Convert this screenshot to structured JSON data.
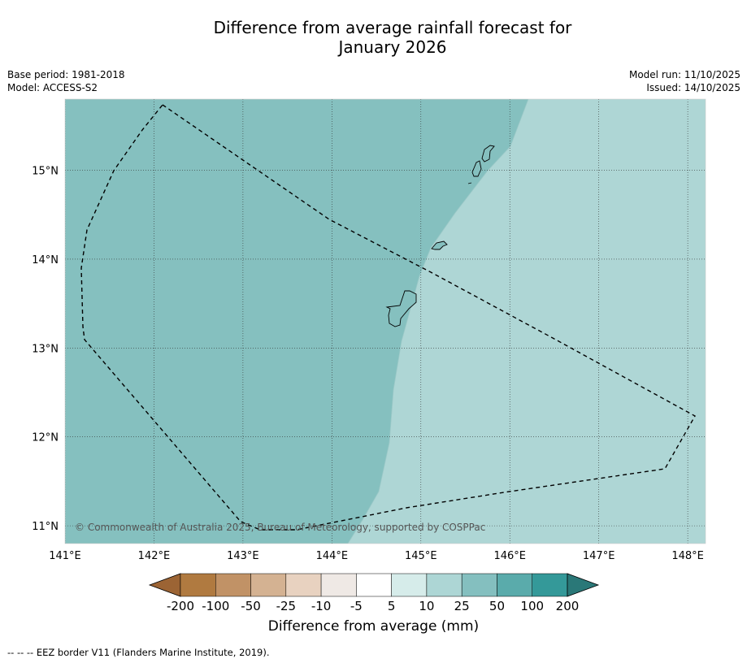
{
  "title": {
    "line1": "Difference from average rainfall forecast for",
    "line2": "January 2026"
  },
  "meta_left": {
    "base_period": "Base period: 1981-2018",
    "model": "Model: ACCESS-S2"
  },
  "meta_right": {
    "model_run": "Model run: 11/10/2025",
    "issued": "Issued: 14/10/2025"
  },
  "map": {
    "lon_range": [
      141.0,
      148.2
    ],
    "lat_range": [
      10.8,
      15.8
    ],
    "lon_ticks": [
      {
        "value": 141,
        "label": "141°E"
      },
      {
        "value": 142,
        "label": "142°E"
      },
      {
        "value": 143,
        "label": "143°E"
      },
      {
        "value": 144,
        "label": "144°E"
      },
      {
        "value": 145,
        "label": "145°E"
      },
      {
        "value": 146,
        "label": "146°E"
      },
      {
        "value": 147,
        "label": "147°E"
      },
      {
        "value": 148,
        "label": "148°E"
      }
    ],
    "lat_ticks": [
      {
        "value": 15,
        "label": "15°N"
      },
      {
        "value": 14,
        "label": "14°N"
      },
      {
        "value": 13,
        "label": "13°N"
      },
      {
        "value": 12,
        "label": "12°N"
      },
      {
        "value": 11,
        "label": "11°N"
      }
    ],
    "regions": [
      {
        "name": "50 to 100 mm above average",
        "color": "#85c0bf"
      },
      {
        "name": "25 to 50 mm above average",
        "color": "#aed6d5"
      }
    ],
    "copyright": "© Commonwealth of Australia 2025, Bureau of Meteorology, supported by COSPPac"
  },
  "colorbar": {
    "title": "Difference from average (mm)",
    "labels": [
      "-200",
      "-100",
      "-50",
      "-25",
      "-10",
      "-5",
      "5",
      "10",
      "25",
      "50",
      "100",
      "200"
    ],
    "colors": [
      "#9c6434",
      "#b07a40",
      "#c19266",
      "#d4b292",
      "#e8d2c0",
      "#efe9e5",
      "#ffffff",
      "#d6ecea",
      "#add6d5",
      "#84bfbf",
      "#5aabab",
      "#349999",
      "#2a7878"
    ]
  },
  "footnote": "--  --  -- EEZ border V11 (Flanders Marine Institute, 2019)."
}
